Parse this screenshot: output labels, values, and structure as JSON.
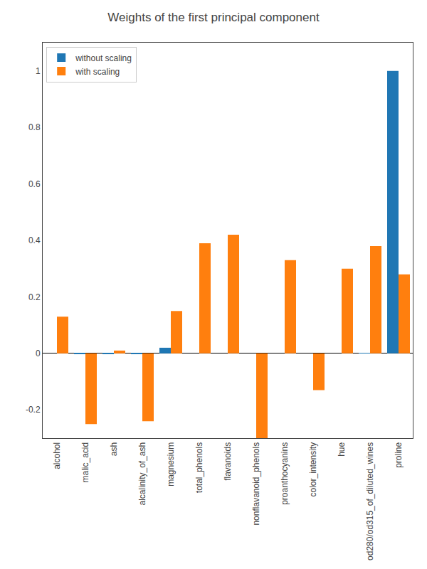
{
  "chart_data": {
    "type": "bar",
    "title": "Weights of the first principal component",
    "categories": [
      "alcohol",
      "malic_acid",
      "ash",
      "alcalinity_of_ash",
      "magnesium",
      "total_phenols",
      "flavanoids",
      "nonflavanoid_phenols",
      "proanthocyanins",
      "color_intensity",
      "hue",
      "od280/od315_of_diluted_wines",
      "proline"
    ],
    "series": [
      {
        "name": "without scaling",
        "color": "#1f77b4",
        "values": [
          0.0,
          -0.002,
          -0.002,
          -0.002,
          0.02,
          0.0,
          0.0,
          0.0,
          0.0,
          0.0,
          0.0,
          0.002,
          1.0
        ]
      },
      {
        "name": "with scaling",
        "color": "#ff7f0e",
        "values": [
          0.13,
          -0.25,
          0.01,
          -0.24,
          0.15,
          0.39,
          0.42,
          -0.3,
          0.33,
          -0.13,
          0.3,
          0.38,
          0.28
        ]
      }
    ],
    "ylim": [
      -0.3,
      1.1
    ],
    "yticks": [
      -0.2,
      0,
      0.2,
      0.4,
      0.6,
      0.8,
      1
    ],
    "grid": false,
    "legend": "upper left"
  }
}
